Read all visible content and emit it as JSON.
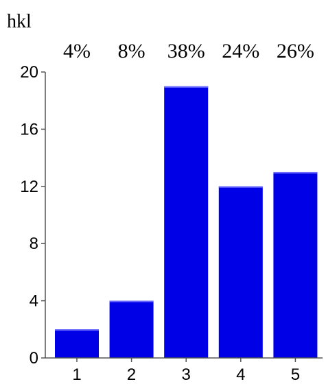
{
  "chart_data": {
    "type": "bar",
    "title": "hkl",
    "xlabel": "",
    "ylabel": "",
    "categories": [
      "1",
      "2",
      "3",
      "4",
      "5"
    ],
    "values": [
      2,
      4,
      19,
      12,
      13
    ],
    "percent_labels": [
      "4%",
      "8%",
      "38%",
      "24%",
      "26%"
    ],
    "yticks": [
      "0",
      "4",
      "8",
      "12",
      "16",
      "20"
    ],
    "ylim": [
      0,
      20
    ],
    "bar_color": "#0000e6",
    "grid": false,
    "legend": "none"
  }
}
